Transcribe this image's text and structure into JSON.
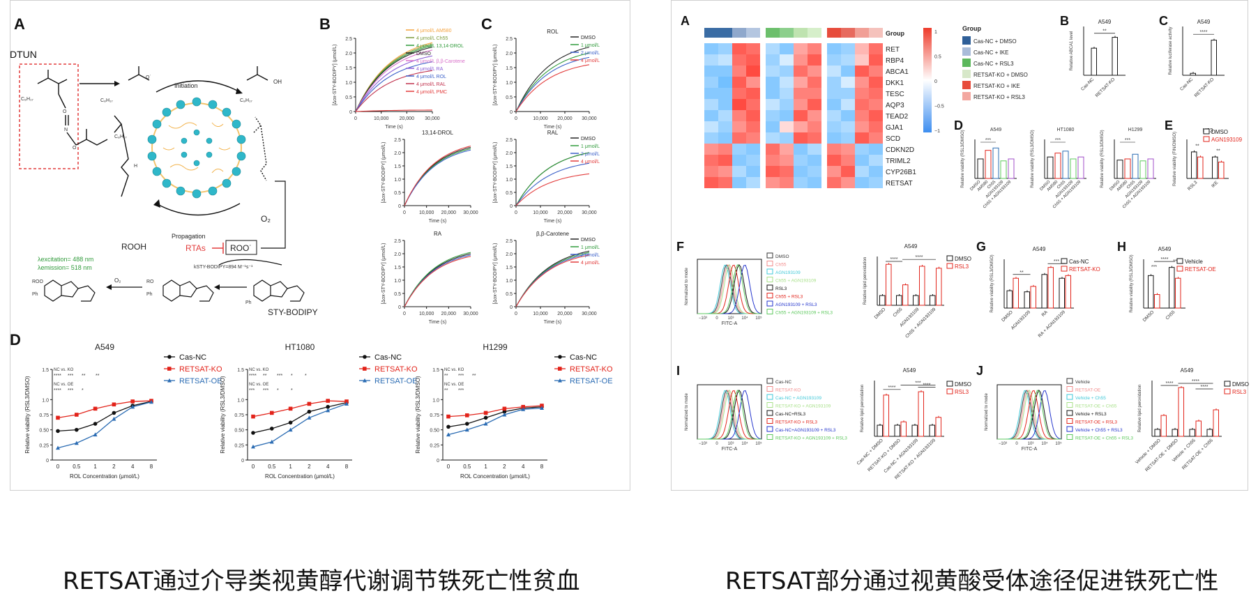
{
  "left_figure": {
    "A": {
      "label": "A",
      "dtun": "DTUN",
      "c8h17": "C₈H₁₇",
      "oh": "OH",
      "initiation": "Initiation",
      "propagation": "Propagation",
      "rooh": "ROOH",
      "rtas": "RTAs",
      "roo": "ROO˙",
      "o2": "O₂",
      "kinh": "kSTY-BODIPY=894 M⁻¹s⁻¹",
      "lambda_ex": "λexcitation= 488 nm",
      "lambda_em": "λemission= 518 nm",
      "sty": "STY-BODIPY",
      "roo_small": "ROO",
      "ph": "Ph",
      "ro": "RO"
    },
    "B": {
      "label": "B",
      "ylabel": "[Δox-STY-BODIPY] (μmol/L)",
      "xlabel": "Time (s)",
      "legend": [
        "4 μmol/L AM580",
        "4 μmol/L Ch55",
        "4 μmol/L 13,14-DROL",
        "DMSO",
        "4 μmol/L β,β-Carotene",
        "4 μmol/L RA",
        "4 μmol/L ROL",
        "4 μmol/L RAL",
        "4 μmol/L PMC"
      ],
      "legend_colors": [
        "#f4a23c",
        "#7a9a3a",
        "#2f9a3a",
        "#222222",
        "#d86fc9",
        "#8a5cd6",
        "#3a5fc8",
        "#c0304c",
        "#e23b3b"
      ],
      "yticks": [
        "0",
        "0.5",
        "1.0",
        "1.5",
        "2.0",
        "2.5"
      ],
      "xticks": [
        "0",
        "10,000",
        "20,000",
        "30,000"
      ]
    },
    "C": {
      "label": "C",
      "subplots": [
        "ROL",
        "RAL",
        "β,β-Carotene"
      ],
      "legend": [
        "DMSO",
        "1 μmol/L",
        "2 μmol/L",
        "4 μmol/L"
      ],
      "legend_colors": [
        "#222222",
        "#2f9a3a",
        "#3a5fc8",
        "#e23b3b"
      ]
    },
    "B_sub": [
      "13,14-DROL",
      "RA"
    ],
    "D": {
      "label": "D",
      "titles": [
        "A549",
        "HT1080",
        "H1299"
      ],
      "ylabel": "Relative viability (RSL3/DMSO)",
      "xlabel": "ROL Concentration (μmol/L)",
      "xticks": [
        "0",
        "0.5",
        "1",
        "2",
        "4",
        "8"
      ],
      "yticks": [
        "0",
        "0.25",
        "0.50",
        "0.75",
        "1.0",
        "1.5"
      ],
      "legend": [
        "Cas-NC",
        "RETSAT-KO",
        "RETSAT-OE"
      ],
      "legend_colors": [
        "#111111",
        "#e2231a",
        "#2b6cb3"
      ],
      "sig_a549": [
        "NC vs. KO",
        "****",
        "***",
        "**",
        "**",
        "NC vs. OE",
        "****",
        "***",
        "*"
      ],
      "sig_ht1080": [
        "NC vs. KO",
        "****",
        "**",
        "***",
        "*",
        "*",
        "NC vs. OE",
        "***",
        "***",
        "*",
        "*"
      ],
      "sig_h1299": [
        "NC vs. KO",
        "**",
        "***",
        "**",
        "NC vs. OE",
        "**",
        "***"
      ]
    }
  },
  "right_figure": {
    "A": {
      "label": "A",
      "genes": [
        "Group",
        "RET",
        "RBP4",
        "ABCA1",
        "DKK1",
        "TESC",
        "AQP3",
        "TEAD2",
        "GJA1",
        "SCD",
        "CDKN2D",
        "TRIML2",
        "CYP26B1",
        "RETSAT"
      ],
      "colorbar": [
        "1",
        "0.5",
        "0",
        "−0.5",
        "−1"
      ],
      "group_title": "Group",
      "groups": [
        "Cas-NC + DMSO",
        "Cas-NC + IKE",
        "Cas-NC + RSL3",
        "RETSAT-KO + DMSO",
        "RETSAT-KO + IKE",
        "RETSAT-KO + RSL3"
      ],
      "group_colors": [
        "#2f5f98",
        "#a9bcd9",
        "#5cb85c",
        "#d7e8c9",
        "#e74c3c",
        "#f3a7a0"
      ]
    },
    "B": {
      "label": "B",
      "title": "A549",
      "ylabel": "Relative ABCA1 level",
      "x": [
        "Cas-NC",
        "RETSAT-KO"
      ],
      "values": [
        1.0,
        1.4
      ],
      "sig": "**"
    },
    "C": {
      "label": "C",
      "title": "A549",
      "ylabel": "Relative luciferase activity",
      "x": [
        "Cas-NC",
        "RETSAT-KO"
      ],
      "values": [
        1,
        18
      ],
      "sig": "****"
    },
    "D": {
      "label": "D",
      "titles": [
        "A549",
        "HT1080",
        "H1299"
      ],
      "ylabel": "Relative viability (RSL3/DMSO)",
      "x": [
        "DMSO",
        "AM580",
        "Ch55",
        "AGN193109",
        "Ch55 + AGN193109"
      ]
    },
    "E": {
      "label": "E",
      "title": "H23",
      "ylabel": "Relative viability (FIN/DMSO)",
      "x": [
        "RSL3",
        "IKE"
      ],
      "legend": [
        "DMSO",
        "AGN193109"
      ]
    },
    "F": {
      "label": "F",
      "legend": [
        "DMSO",
        "Ch55",
        "AGN193109",
        "Ch55 + AGN193109",
        "RSL3",
        "Ch55 + RSL3",
        "AGN193109 + RSL3",
        "Ch55 + AGN193109 + RSL3"
      ],
      "legend_colors": [
        "#333",
        "#f28c8c",
        "#3fc8d8",
        "#a8e08a",
        "#111",
        "#e2231a",
        "#2233cc",
        "#5cc85c"
      ],
      "ylabel": "Normalized to mode",
      "xlabel": "FITC-A",
      "title": "A549",
      "bar_ylabel": "Relative lipid peroxidation",
      "bar_x": [
        "DMSO",
        "Ch55",
        "AGN193109",
        "Ch55 + AGN193109"
      ],
      "bar_legend": [
        "DMSO",
        "RSL3"
      ]
    },
    "G": {
      "label": "G",
      "title": "A549",
      "ylabel": "Relative viability (RSL3/DMSO)",
      "x": [
        "DMSO",
        "AGN193109",
        "RA",
        "RA + AGN193109"
      ],
      "legend": [
        "Cas-NC",
        "RETSAT-KO"
      ]
    },
    "H": {
      "label": "H",
      "title": "A549",
      "ylabel": "Relative viability (RSL3/DMSO)",
      "x": [
        "DMSO",
        "Ch55"
      ],
      "legend": [
        "Vehicle",
        "RETSAT-OE"
      ]
    },
    "I": {
      "label": "I",
      "legend": [
        "Cas-NC",
        "RETSAT-KO",
        "Cas-NC + AGN193109",
        "RETSAT-KO + AGN193109",
        "Cas-NC+RSL3",
        "RETSAT-KO + RSL3",
        "Cas-NC+AGN193109 + RSL3",
        "RETSAT-KO + AGN193109 + RSL3"
      ],
      "legend_colors": [
        "#333",
        "#f28c8c",
        "#3fc8d8",
        "#a8e08a",
        "#111",
        "#e2231a",
        "#2233cc",
        "#5cc85c"
      ],
      "title": "A549",
      "bar_x": [
        "Cas-NC + DMSO",
        "RETSAT-KO + DMSO",
        "Cas-NC + AGN193109",
        "RETSAT-KO + AGN193109"
      ],
      "bar_legend": [
        "DMSO",
        "RSL3"
      ]
    },
    "J": {
      "label": "J",
      "legend": [
        "Vehicle",
        "RETSAT-OE",
        "Vehicle + Ch55",
        "RETSAT-OE + Ch55",
        "Vehicle + RSL3",
        "RETSAT-OE + RSL3",
        "Vehicle + Ch55 + RSL3",
        "RETSAT-OE + Ch55 + RSL3"
      ],
      "legend_colors": [
        "#333",
        "#f28c8c",
        "#3fc8d8",
        "#a8e08a",
        "#111",
        "#e2231a",
        "#2233cc",
        "#5cc85c"
      ],
      "title": "A549",
      "bar_x": [
        "Vehicle + DMSO",
        "RETSAT-OE + DMSO",
        "Vehicle + Ch55",
        "RETSAT-OE + Ch55"
      ],
      "bar_legend": [
        "DMSO",
        "RSL3"
      ]
    }
  },
  "captions": {
    "left": "RETSAT通过介导类视黄醇代谢调节铁死亡性贫血",
    "right": "RETSAT部分通过视黄酸受体途径促进铁死亡性"
  }
}
